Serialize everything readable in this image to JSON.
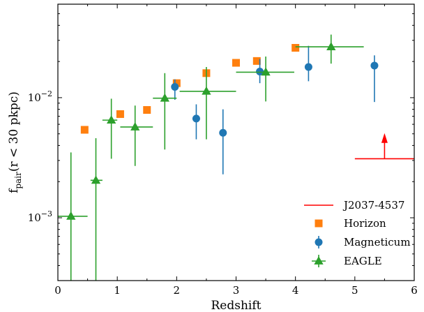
{
  "chart_data": {
    "type": "scatter",
    "xlabel": "Redshift",
    "ylabel": {
      "main": "f",
      "sub": "pair",
      "rest": "(r < 30 pkpc)"
    },
    "xlim": [
      0,
      6
    ],
    "ylim": [
      0.0003,
      0.06
    ],
    "yscale": "log",
    "x_ticks": [
      0,
      1,
      2,
      3,
      4,
      5,
      6
    ],
    "x_tick_labels": [
      "0",
      "1",
      "2",
      "3",
      "4",
      "5",
      "6"
    ],
    "y_ticks_major": [
      {
        "value": 0.001,
        "base": "10",
        "exp": "−3"
      },
      {
        "value": 0.01,
        "base": "10",
        "exp": "−2"
      }
    ],
    "legend_position": "lower right",
    "colors": {
      "j2037": "#ff0000",
      "horizon": "#ff7f0e",
      "magneticum": "#1f77b4",
      "eagle": "#2ca02c"
    },
    "series": [
      {
        "name": "J2037-4537",
        "marker": "lower-limit",
        "points": [
          {
            "x": 5.5,
            "y": 0.0031,
            "xlo": 5.0,
            "xhi": 6.0,
            "ylimit_top": 0.0048
          }
        ]
      },
      {
        "name": "Horizon",
        "marker": "square",
        "points": [
          {
            "x": 0.45,
            "y": 0.0054
          },
          {
            "x": 1.05,
            "y": 0.0073
          },
          {
            "x": 1.5,
            "y": 0.0079
          },
          {
            "x": 2.0,
            "y": 0.0132
          },
          {
            "x": 2.5,
            "y": 0.016
          },
          {
            "x": 3.0,
            "y": 0.0195
          },
          {
            "x": 3.35,
            "y": 0.0202
          },
          {
            "x": 4.0,
            "y": 0.026
          }
        ]
      },
      {
        "name": "Magneticum",
        "marker": "circle",
        "points": [
          {
            "x": 1.97,
            "y": 0.0123,
            "ylo": 0.0096,
            "yhi": 0.0142
          },
          {
            "x": 2.33,
            "y": 0.0067,
            "ylo": 0.0045,
            "yhi": 0.0088
          },
          {
            "x": 2.78,
            "y": 0.0051,
            "ylo": 0.0023,
            "yhi": 0.008
          },
          {
            "x": 3.4,
            "y": 0.0165,
            "ylo": 0.0132,
            "yhi": 0.021
          },
          {
            "x": 4.22,
            "y": 0.018,
            "ylo": 0.0137,
            "yhi": 0.027
          },
          {
            "x": 5.33,
            "y": 0.0185,
            "ylo": 0.0092,
            "yhi": 0.0225
          }
        ]
      },
      {
        "name": "EAGLE",
        "marker": "triangle",
        "points": [
          {
            "x": 0.22,
            "y": 0.00103,
            "xlo": 0.0,
            "xhi": 0.5,
            "ylo": 0.0003,
            "yhi": 0.0035
          },
          {
            "x": 0.64,
            "y": 0.00205,
            "xlo": 0.55,
            "xhi": 0.75,
            "ylo": 0.0003,
            "yhi": 0.0046
          },
          {
            "x": 0.9,
            "y": 0.0065,
            "xlo": 0.75,
            "xhi": 1.0,
            "ylo": 0.0031,
            "yhi": 0.0098
          },
          {
            "x": 1.3,
            "y": 0.0057,
            "xlo": 1.05,
            "xhi": 1.6,
            "ylo": 0.0027,
            "yhi": 0.0086
          },
          {
            "x": 1.8,
            "y": 0.0099,
            "xlo": 1.6,
            "xhi": 2.0,
            "ylo": 0.0037,
            "yhi": 0.016
          },
          {
            "x": 2.5,
            "y": 0.0113,
            "xlo": 2.05,
            "xhi": 3.0,
            "ylo": 0.0045,
            "yhi": 0.018
          },
          {
            "x": 3.5,
            "y": 0.0163,
            "xlo": 3.0,
            "xhi": 3.98,
            "ylo": 0.0093,
            "yhi": 0.022
          },
          {
            "x": 4.6,
            "y": 0.0265,
            "xlo": 4.0,
            "xhi": 5.15,
            "ylo": 0.0192,
            "yhi": 0.0335
          }
        ]
      }
    ]
  }
}
